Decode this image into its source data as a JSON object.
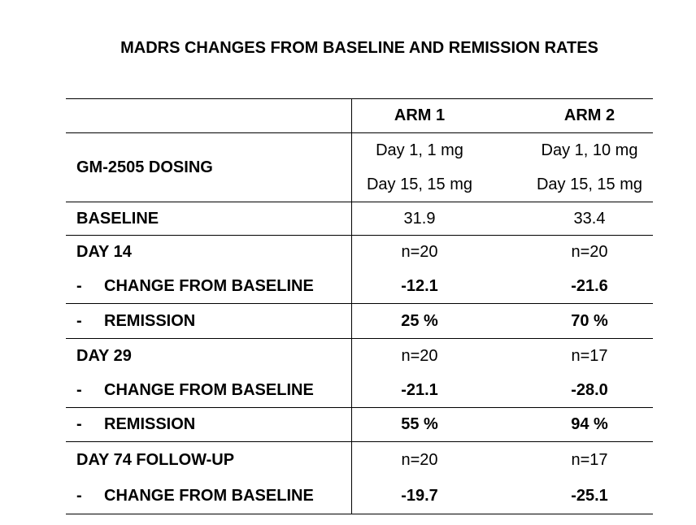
{
  "title": "MADRS CHANGES FROM BASELINE AND REMISSION RATES",
  "table": {
    "header": {
      "arm1": "ARM 1",
      "arm2": "ARM 2"
    },
    "dosing": {
      "label": "GM-2505 DOSING",
      "arm1_line1": "Day 1, 1 mg",
      "arm1_line2": "Day 15, 15 mg",
      "arm2_line1": "Day 1, 10 mg",
      "arm2_line2": "Day 15, 15 mg"
    },
    "baseline": {
      "label": "BASELINE",
      "arm1": "31.9",
      "arm2": "33.4"
    },
    "day14": {
      "label": "DAY 14",
      "dash": "-",
      "sub_label": "CHANGE FROM BASELINE",
      "arm1_n": "n=20",
      "arm1_change": "-12.1",
      "arm2_n": "n=20",
      "arm2_change": "-21.6"
    },
    "remission14": {
      "dash": "-",
      "sub_label": "REMISSION",
      "arm1": "25 %",
      "arm2": "70 %"
    },
    "day29": {
      "label": "DAY 29",
      "dash": "-",
      "sub_label": "CHANGE FROM BASELINE",
      "arm1_n": "n=20",
      "arm1_change": "-21.1",
      "arm2_n": "n=17",
      "arm2_change": "-28.0"
    },
    "remission29": {
      "dash": "-",
      "sub_label": "REMISSION",
      "arm1": "55 %",
      "arm2": "94 %"
    },
    "day74": {
      "label": "DAY 74 FOLLOW-UP",
      "dash": "-",
      "sub_label": "CHANGE FROM BASELINE",
      "arm1_n": "n=20",
      "arm1_change": "-19.7",
      "arm2_n": "n=17",
      "arm2_change": "-25.1"
    },
    "colors": {
      "text": "#000000",
      "border": "#000000",
      "background": "#ffffff"
    }
  }
}
